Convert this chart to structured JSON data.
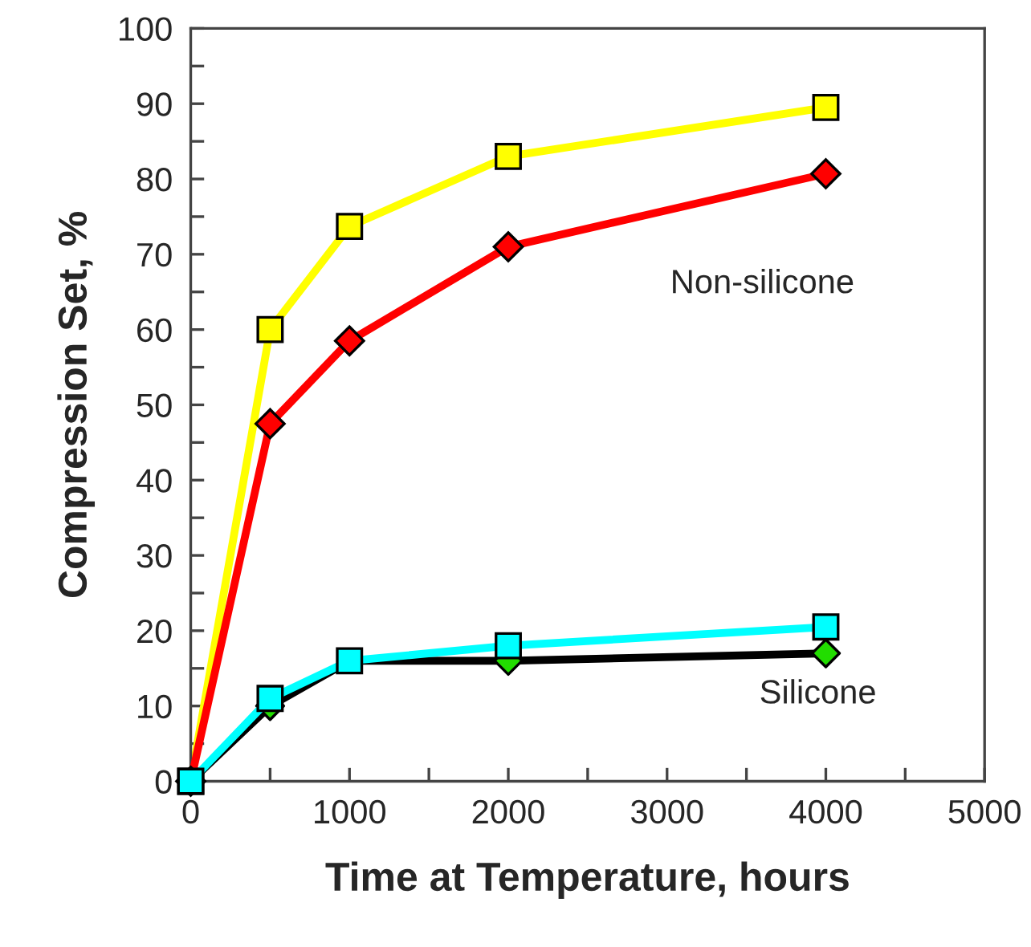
{
  "chart_data": {
    "type": "line",
    "xlabel": "Time at Temperature, hours",
    "ylabel": "Compression Set, %",
    "x": [
      0,
      500,
      1000,
      2000,
      4000
    ],
    "series": [
      {
        "color": "#ffff00",
        "marker": "square",
        "values": [
          0,
          60,
          73.7,
          83,
          89.5
        ]
      },
      {
        "color": "#ff0000",
        "marker": "diamond",
        "values": [
          0,
          47.5,
          58.5,
          71,
          80.7
        ]
      },
      {
        "color": "#000000",
        "marker": "none",
        "values": [
          0,
          10,
          16,
          16,
          17
        ]
      },
      {
        "type": "scatter",
        "color": "#22dd00",
        "marker": "diamond",
        "values": [
          null,
          10,
          null,
          16,
          17
        ]
      },
      {
        "color": "#00ffff",
        "marker": "square",
        "values": [
          0,
          11,
          16,
          18,
          20.5
        ]
      }
    ],
    "annotations": [
      "Non-silicone",
      "Silicone"
    ],
    "xlim": [
      0,
      5000
    ],
    "ylim": [
      0,
      100
    ],
    "xticks": [
      0,
      {
        "value": 500,
        "label": null
      },
      1000,
      {
        "value": 1500,
        "label": null
      },
      2000,
      {
        "value": 2500,
        "label": null
      },
      3000,
      {
        "value": 3500,
        "label": null
      },
      4000,
      {
        "value": 4500,
        "label": null
      },
      5000
    ],
    "yticks": [
      0,
      {
        "value": 5,
        "label": null
      },
      10,
      {
        "value": 15,
        "label": null
      },
      20,
      {
        "value": 25,
        "label": null
      },
      30,
      {
        "value": 35,
        "label": null
      },
      40,
      {
        "value": 45,
        "label": null
      },
      50,
      {
        "value": 55,
        "label": null
      },
      60,
      {
        "value": 65,
        "label": null
      },
      70,
      {
        "value": 75,
        "label": null
      },
      80,
      {
        "value": 85,
        "label": null
      },
      90,
      {
        "value": 95,
        "label": null
      },
      100
    ],
    "grid": false,
    "legend": false
  }
}
